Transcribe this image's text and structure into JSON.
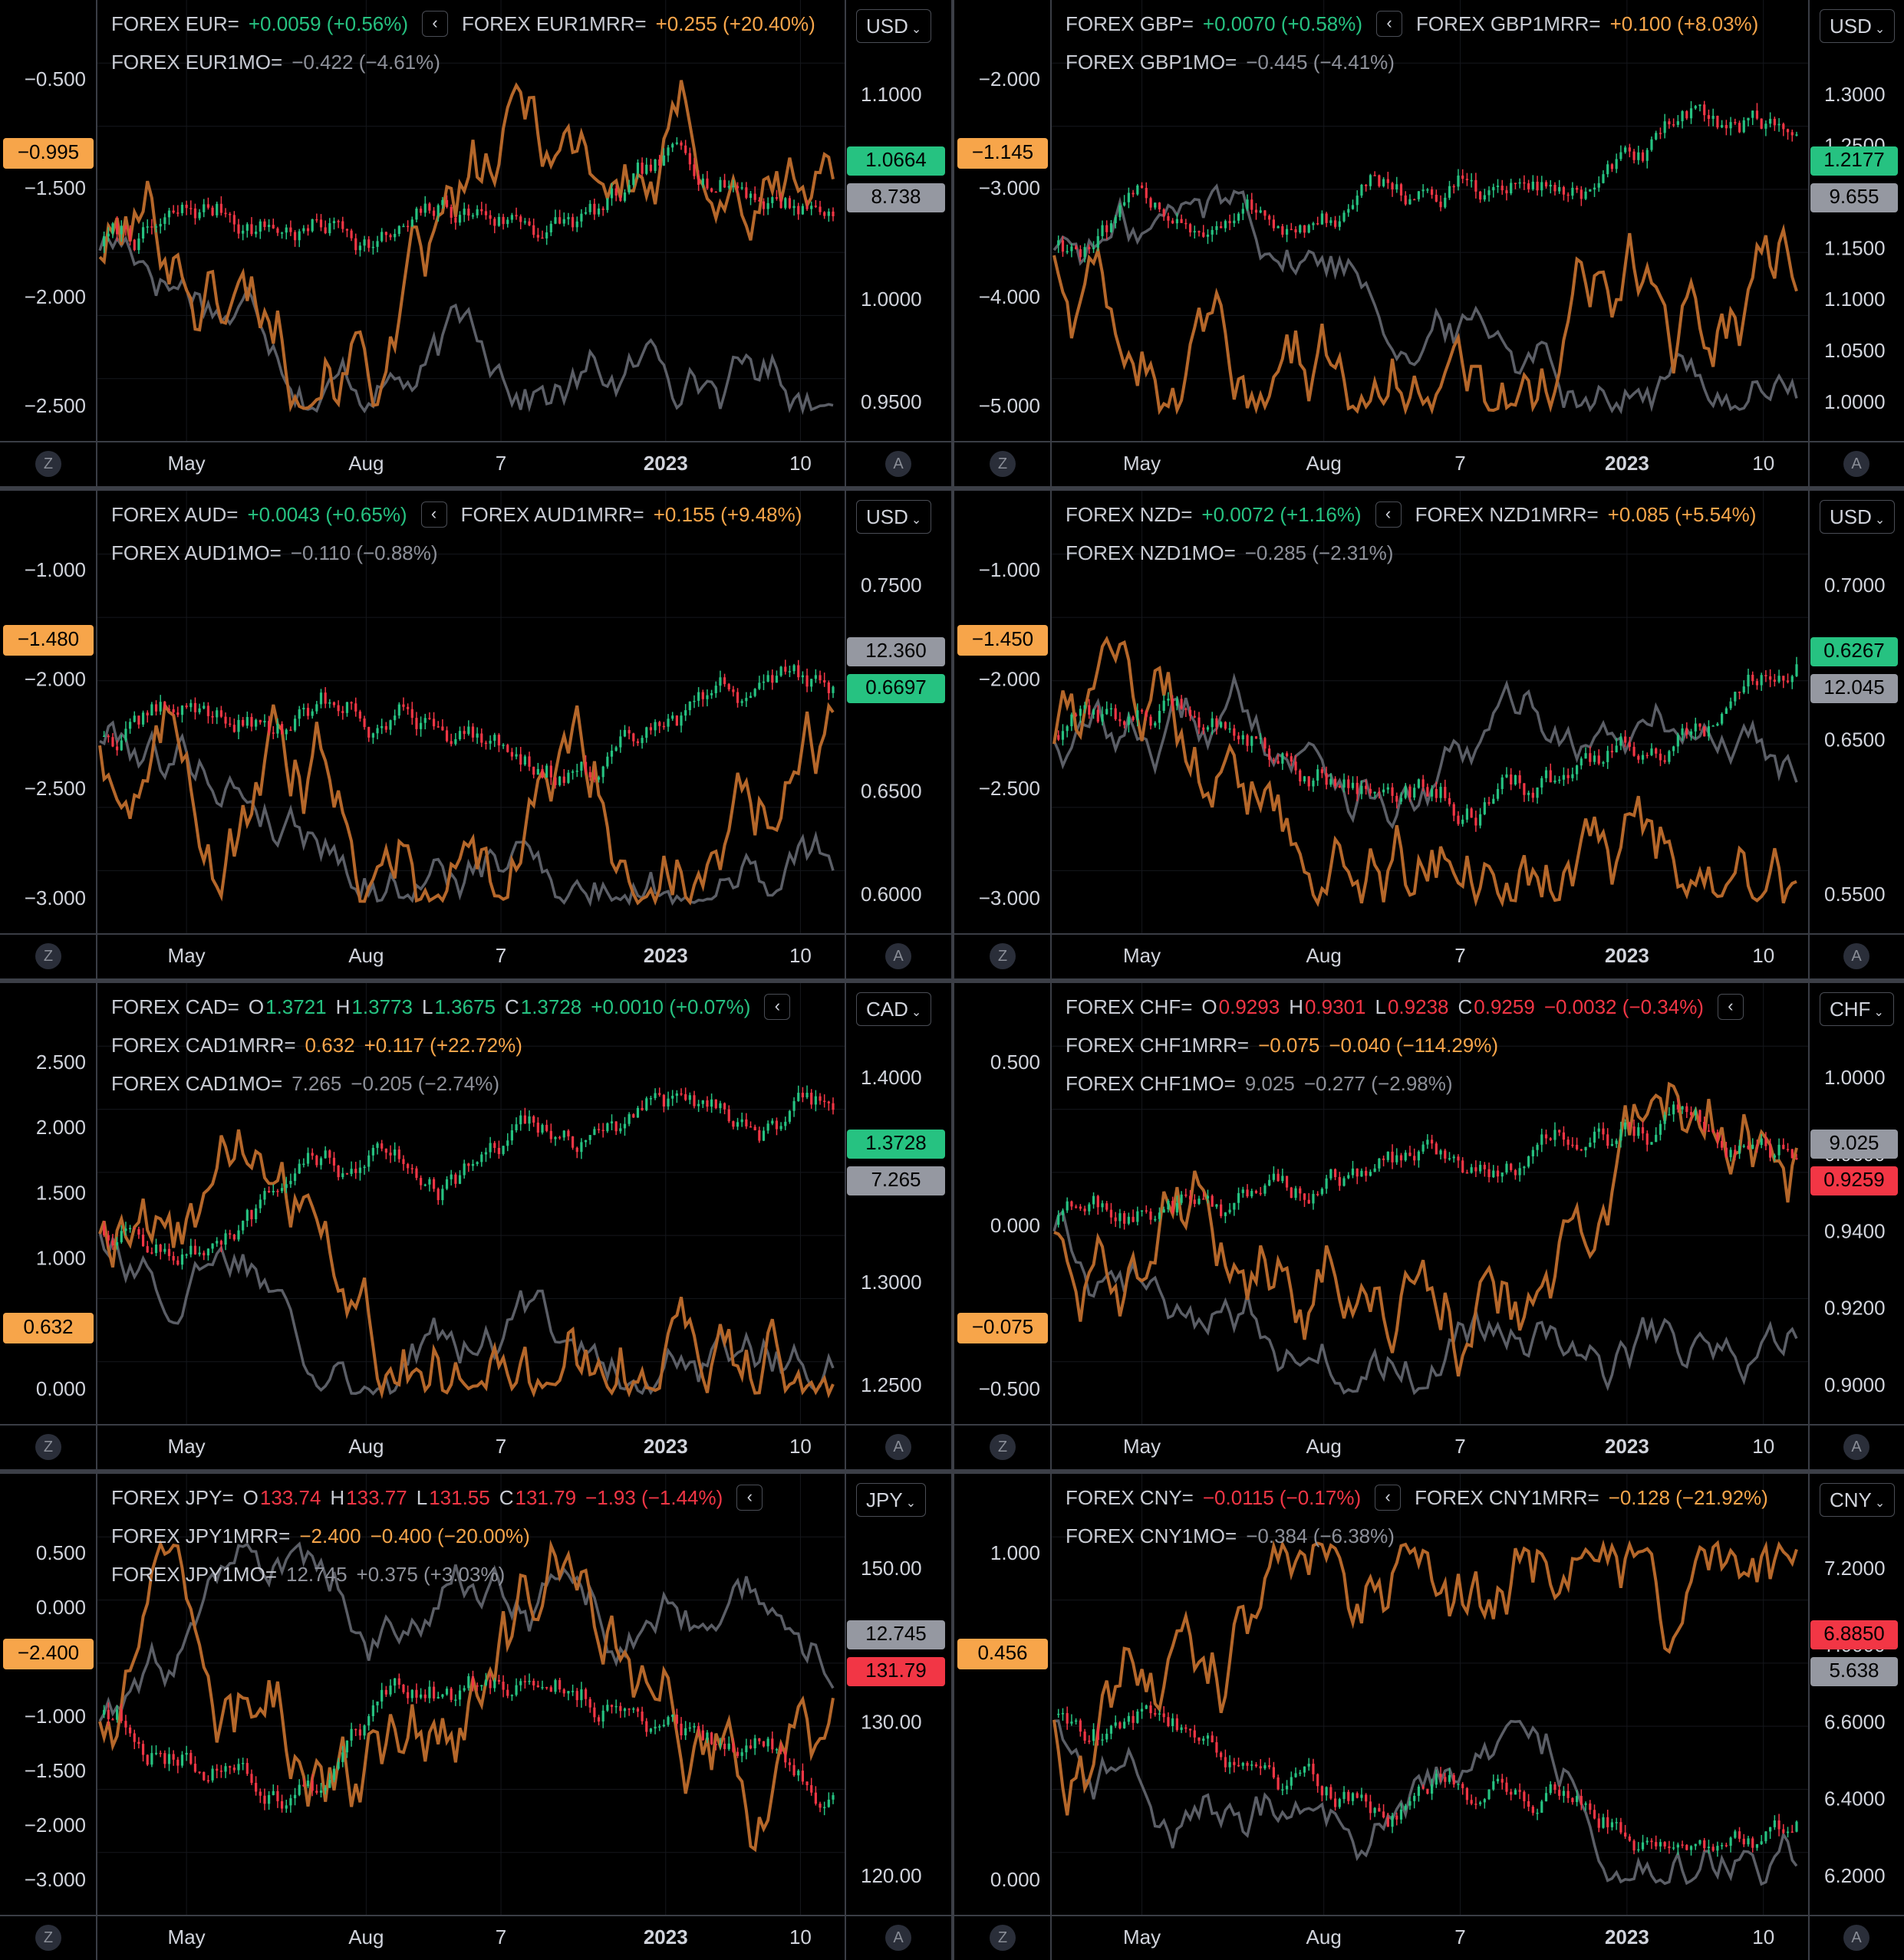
{
  "colors": {
    "up": "#26c281",
    "down": "#f23645",
    "orange": "#b5672a",
    "orange_label": "#f7a54a",
    "grey": "#5b5e66",
    "grey_label": "#8d9099",
    "cur_green": "#26c281",
    "cur_red": "#f23645"
  },
  "ui": {
    "z": "Z",
    "a": "A",
    "collapse": "‹",
    "chev": "⌄"
  },
  "x_axis_labels": [
    "May",
    "Aug",
    "7",
    "2023",
    "10"
  ],
  "panels": [
    {
      "id": "eur",
      "currency": "USD",
      "legend": [
        {
          "name": "FOREX EUR=",
          "parts": [
            {
              "t": "+0.0059 (+0.56%)",
              "c": "pos"
            }
          ],
          "collapse": true,
          "name2": "FOREX EUR1MRR=",
          "parts2": [
            {
              "t": "+0.255 (+20.40%)",
              "c": "org"
            }
          ]
        },
        {
          "name": "FOREX EUR1MO=",
          "parts": [
            {
              "t": "−0.422 (−4.61%)",
              "c": "gry"
            }
          ]
        }
      ],
      "left_ticks": [
        "−0.500",
        "−1.500",
        "−2.000",
        "−2.500"
      ],
      "right_ticks": [
        "1.1000",
        "1.0500",
        "1.0000",
        "0.9500"
      ],
      "left_tag": {
        "text": "−0.995"
      },
      "right_tags": [
        {
          "text": "1.0664",
          "kind": "green"
        },
        {
          "text": "8.738",
          "kind": "grey"
        }
      ],
      "chart_data": {
        "type": "line",
        "title": "",
        "left_axis": {
          "ticks": [
            -0.5,
            -1.5,
            -2.0,
            -2.5
          ]
        },
        "right_axis": {
          "ticks": [
            1.1,
            1.05,
            1.0,
            0.95
          ]
        },
        "series": [
          {
            "name": "FOREX EUR=",
            "last": 1.0664
          },
          {
            "name": "FOREX EUR1MRR=",
            "last": -0.995
          },
          {
            "name": "FOREX EUR1MO=",
            "last": 8.738
          }
        ]
      }
    },
    {
      "id": "gbp",
      "currency": "USD",
      "legend": [
        {
          "name": "FOREX GBP=",
          "parts": [
            {
              "t": "+0.0070 (+0.58%)",
              "c": "pos"
            }
          ],
          "collapse": true,
          "name2": "FOREX GBP1MRR=",
          "parts2": [
            {
              "t": "+0.100 (+8.03%)",
              "c": "org"
            }
          ]
        },
        {
          "name": "FOREX GBP1MO=",
          "parts": [
            {
              "t": "−0.445 (−4.41%)",
              "c": "gry"
            }
          ]
        }
      ],
      "left_ticks": [
        "−2.000",
        "−3.000",
        "−4.000",
        "−5.000"
      ],
      "right_ticks": [
        "1.3000",
        "1.2500",
        "1.2000",
        "1.1500",
        "1.1000",
        "1.0500",
        "1.0000"
      ],
      "left_tag": {
        "text": "−1.145"
      },
      "right_tags": [
        {
          "text": "1.2177",
          "kind": "green"
        },
        {
          "text": "9.655",
          "kind": "grey"
        }
      ],
      "chart_data": {
        "type": "line",
        "title": "",
        "left_axis": {
          "ticks": [
            -2,
            -3,
            -4,
            -5
          ]
        },
        "right_axis": {
          "ticks": [
            1.3,
            1.25,
            1.2,
            1.15,
            1.1,
            1.05,
            1.0
          ]
        },
        "series": [
          {
            "name": "FOREX GBP=",
            "last": 1.2177
          },
          {
            "name": "FOREX GBP1MRR=",
            "last": -1.145
          },
          {
            "name": "FOREX GBP1MO=",
            "last": 9.655
          }
        ]
      }
    },
    {
      "id": "aud",
      "currency": "USD",
      "legend": [
        {
          "name": "FOREX AUD=",
          "parts": [
            {
              "t": "+0.0043 (+0.65%)",
              "c": "pos"
            }
          ],
          "collapse": true,
          "name2": "FOREX AUD1MRR=",
          "parts2": [
            {
              "t": "+0.155 (+9.48%)",
              "c": "org"
            }
          ]
        },
        {
          "name": "FOREX AUD1MO=",
          "parts": [
            {
              "t": "−0.110 (−0.88%)",
              "c": "gry"
            }
          ]
        }
      ],
      "left_ticks": [
        "−1.000",
        "−2.000",
        "−2.500",
        "−3.000"
      ],
      "right_ticks": [
        "0.7500",
        "0.7000",
        "0.6500",
        "0.6000"
      ],
      "left_tag": {
        "text": "−1.480"
      },
      "right_tags": [
        {
          "text": "12.360",
          "kind": "grey"
        },
        {
          "text": "0.6697",
          "kind": "green"
        }
      ],
      "chart_data": {
        "type": "line",
        "title": "",
        "left_axis": {
          "ticks": [
            -1,
            -2,
            -2.5,
            -3
          ]
        },
        "right_axis": {
          "ticks": [
            0.75,
            0.7,
            0.65,
            0.6
          ]
        },
        "series": [
          {
            "name": "FOREX AUD=",
            "last": 0.6697
          },
          {
            "name": "FOREX AUD1MRR=",
            "last": -1.48
          },
          {
            "name": "FOREX AUD1MO=",
            "last": 12.36
          }
        ]
      }
    },
    {
      "id": "nzd",
      "currency": "USD",
      "legend": [
        {
          "name": "FOREX NZD=",
          "parts": [
            {
              "t": "+0.0072 (+1.16%)",
              "c": "pos"
            }
          ],
          "collapse": true,
          "name2": "FOREX NZD1MRR=",
          "parts2": [
            {
              "t": "+0.085 (+5.54%)",
              "c": "org"
            }
          ]
        },
        {
          "name": "FOREX NZD1MO=",
          "parts": [
            {
              "t": "−0.285 (−2.31%)",
              "c": "gry"
            }
          ]
        }
      ],
      "left_ticks": [
        "−1.000",
        "−2.000",
        "−2.500",
        "−3.000"
      ],
      "right_ticks": [
        "0.7000",
        "0.6500",
        "0.5500"
      ],
      "left_tag": {
        "text": "−1.450"
      },
      "right_tags": [
        {
          "text": "0.6267",
          "kind": "green"
        },
        {
          "text": "12.045",
          "kind": "grey"
        }
      ],
      "chart_data": {
        "type": "line",
        "title": "",
        "left_axis": {
          "ticks": [
            -1,
            -2,
            -2.5,
            -3
          ]
        },
        "right_axis": {
          "ticks": [
            0.7,
            0.65,
            0.55
          ]
        },
        "series": [
          {
            "name": "FOREX NZD=",
            "last": 0.6267
          },
          {
            "name": "FOREX NZD1MRR=",
            "last": -1.45
          },
          {
            "name": "FOREX NZD1MO=",
            "last": 12.045
          }
        ]
      }
    },
    {
      "id": "cad",
      "currency": "CAD",
      "legend": [
        {
          "name": "FOREX CAD=",
          "ohlc": [
            {
              "l": "O",
              "v": "1.3721",
              "c": "pos"
            },
            {
              "l": "H",
              "v": "1.3773",
              "c": "pos"
            },
            {
              "l": "L",
              "v": "1.3675",
              "c": "pos"
            },
            {
              "l": "C",
              "v": "1.3728",
              "c": "pos"
            }
          ],
          "parts": [
            {
              "t": "+0.0010 (+0.07%)",
              "c": "pos"
            }
          ],
          "collapse": true
        },
        {
          "name": "FOREX CAD1MRR=",
          "parts": [
            {
              "t": "0.632",
              "c": "org"
            },
            {
              "t": "+0.117 (+22.72%)",
              "c": "org"
            }
          ]
        },
        {
          "name": "FOREX CAD1MO=",
          "parts": [
            {
              "t": "7.265",
              "c": "gry"
            },
            {
              "t": "−0.205 (−2.74%)",
              "c": "gry"
            }
          ]
        }
      ],
      "left_ticks": [
        "2.500",
        "2.000",
        "1.500",
        "1.000",
        "0.500",
        "0.000"
      ],
      "right_ticks": [
        "1.4000",
        "1.3500",
        "1.3000",
        "1.2500"
      ],
      "left_tag": {
        "text": "0.632"
      },
      "right_tags": [
        {
          "text": "1.3728",
          "kind": "green"
        },
        {
          "text": "7.265",
          "kind": "grey"
        }
      ],
      "chart_data": {
        "type": "line",
        "title": "",
        "left_axis": {
          "ticks": [
            2.5,
            2.0,
            1.5,
            1.0,
            0.5,
            0.0
          ]
        },
        "right_axis": {
          "ticks": [
            1.4,
            1.35,
            1.3,
            1.25
          ]
        },
        "series": [
          {
            "name": "FOREX CAD=",
            "open": 1.3721,
            "high": 1.3773,
            "low": 1.3675,
            "close": 1.3728
          },
          {
            "name": "FOREX CAD1MRR=",
            "last": 0.632
          },
          {
            "name": "FOREX CAD1MO=",
            "last": 7.265
          }
        ]
      }
    },
    {
      "id": "chf",
      "currency": "CHF",
      "legend": [
        {
          "name": "FOREX CHF=",
          "ohlc": [
            {
              "l": "O",
              "v": "0.9293",
              "c": "neg"
            },
            {
              "l": "H",
              "v": "0.9301",
              "c": "neg"
            },
            {
              "l": "L",
              "v": "0.9238",
              "c": "neg"
            },
            {
              "l": "C",
              "v": "0.9259",
              "c": "neg"
            }
          ],
          "parts": [
            {
              "t": "−0.0032 (−0.34%)",
              "c": "neg"
            }
          ],
          "collapse": true
        },
        {
          "name": "FOREX CHF1MRR=",
          "parts": [
            {
              "t": "−0.075",
              "c": "org"
            },
            {
              "t": "−0.040 (−114.29%)",
              "c": "org"
            }
          ]
        },
        {
          "name": "FOREX CHF1MO=",
          "parts": [
            {
              "t": "9.025",
              "c": "gry"
            },
            {
              "t": "−0.277 (−2.98%)",
              "c": "gry"
            }
          ]
        }
      ],
      "left_ticks": [
        "0.500",
        "0.000",
        "−0.500"
      ],
      "right_ticks": [
        "1.0000",
        "0.9800",
        "0.9400",
        "0.9200",
        "0.9000"
      ],
      "left_tag": {
        "text": "−0.075"
      },
      "right_tags": [
        {
          "text": "9.025",
          "kind": "grey"
        },
        {
          "text": "0.9259",
          "kind": "red"
        }
      ],
      "chart_data": {
        "type": "line",
        "title": "",
        "left_axis": {
          "ticks": [
            0.5,
            0.0,
            -0.5
          ]
        },
        "right_axis": {
          "ticks": [
            1.0,
            0.98,
            0.94,
            0.92,
            0.9
          ]
        },
        "series": [
          {
            "name": "FOREX CHF=",
            "open": 0.9293,
            "high": 0.9301,
            "low": 0.9238,
            "close": 0.9259
          },
          {
            "name": "FOREX CHF1MRR=",
            "last": -0.075
          },
          {
            "name": "FOREX CHF1MO=",
            "last": 9.025
          }
        ]
      }
    },
    {
      "id": "jpy",
      "currency": "JPY",
      "legend": [
        {
          "name": "FOREX JPY=",
          "ohlc": [
            {
              "l": "O",
              "v": "133.74",
              "c": "neg"
            },
            {
              "l": "H",
              "v": "133.77",
              "c": "neg"
            },
            {
              "l": "L",
              "v": "131.55",
              "c": "neg"
            },
            {
              "l": "C",
              "v": "131.79",
              "c": "neg"
            }
          ],
          "parts": [
            {
              "t": "−1.93 (−1.44%)",
              "c": "neg"
            }
          ],
          "collapse": true
        },
        {
          "name": "FOREX JPY1MRR=",
          "parts": [
            {
              "t": "−2.400",
              "c": "org"
            },
            {
              "t": "−0.400 (−20.00%)",
              "c": "org"
            }
          ]
        },
        {
          "name": "FOREX JPY1MO=",
          "parts": [
            {
              "t": "12.745",
              "c": "gry"
            },
            {
              "t": "+0.375 (+3.03%)",
              "c": "gry"
            }
          ]
        }
      ],
      "left_ticks": [
        "0.500",
        "0.000",
        "−0.500",
        "−1.000",
        "−1.500",
        "−2.000",
        "−3.000"
      ],
      "right_ticks": [
        "150.00",
        "130.00",
        "120.00"
      ],
      "left_tag": {
        "text": "−2.400"
      },
      "right_tags": [
        {
          "text": "12.745",
          "kind": "grey"
        },
        {
          "text": "131.79",
          "kind": "red"
        }
      ],
      "chart_data": {
        "type": "line",
        "title": "",
        "left_axis": {
          "ticks": [
            0.5,
            0.0,
            -0.5,
            -1.0,
            -1.5,
            -2.0,
            -3.0
          ]
        },
        "right_axis": {
          "ticks": [
            150,
            130,
            120
          ]
        },
        "series": [
          {
            "name": "FOREX JPY=",
            "open": 133.74,
            "high": 133.77,
            "low": 131.55,
            "close": 131.79
          },
          {
            "name": "FOREX JPY1MRR=",
            "last": -2.4
          },
          {
            "name": "FOREX JPY1MO=",
            "last": 12.745
          }
        ]
      }
    },
    {
      "id": "cny",
      "currency": "CNY",
      "legend": [
        {
          "name": "FOREX CNY=",
          "parts": [
            {
              "t": "−0.0115 (−0.17%)",
              "c": "neg"
            }
          ],
          "collapse": true,
          "name2": "FOREX CNY1MRR=",
          "parts2": [
            {
              "t": "−0.128 (−21.92%)",
              "c": "org"
            }
          ]
        },
        {
          "name": "FOREX CNY1MO=",
          "parts": [
            {
              "t": "−0.384 (−6.38%)",
              "c": "gry"
            }
          ]
        }
      ],
      "left_ticks": [
        "1.000",
        "0.000"
      ],
      "right_ticks": [
        "7.2000",
        "7.0000",
        "6.6000",
        "6.4000",
        "6.2000"
      ],
      "left_tag": {
        "text": "0.456"
      },
      "right_tags": [
        {
          "text": "6.8850",
          "kind": "red"
        },
        {
          "text": "5.638",
          "kind": "grey"
        }
      ],
      "chart_data": {
        "type": "line",
        "title": "",
        "left_axis": {
          "ticks": [
            1.0,
            0.0
          ]
        },
        "right_axis": {
          "ticks": [
            7.2,
            7.0,
            6.6,
            6.4,
            6.2
          ]
        },
        "series": [
          {
            "name": "FOREX CNY=",
            "last": 6.885
          },
          {
            "name": "FOREX CNY1MRR=",
            "last": 0.456
          },
          {
            "name": "FOREX CNY1MO=",
            "last": 5.638
          }
        ]
      }
    }
  ]
}
